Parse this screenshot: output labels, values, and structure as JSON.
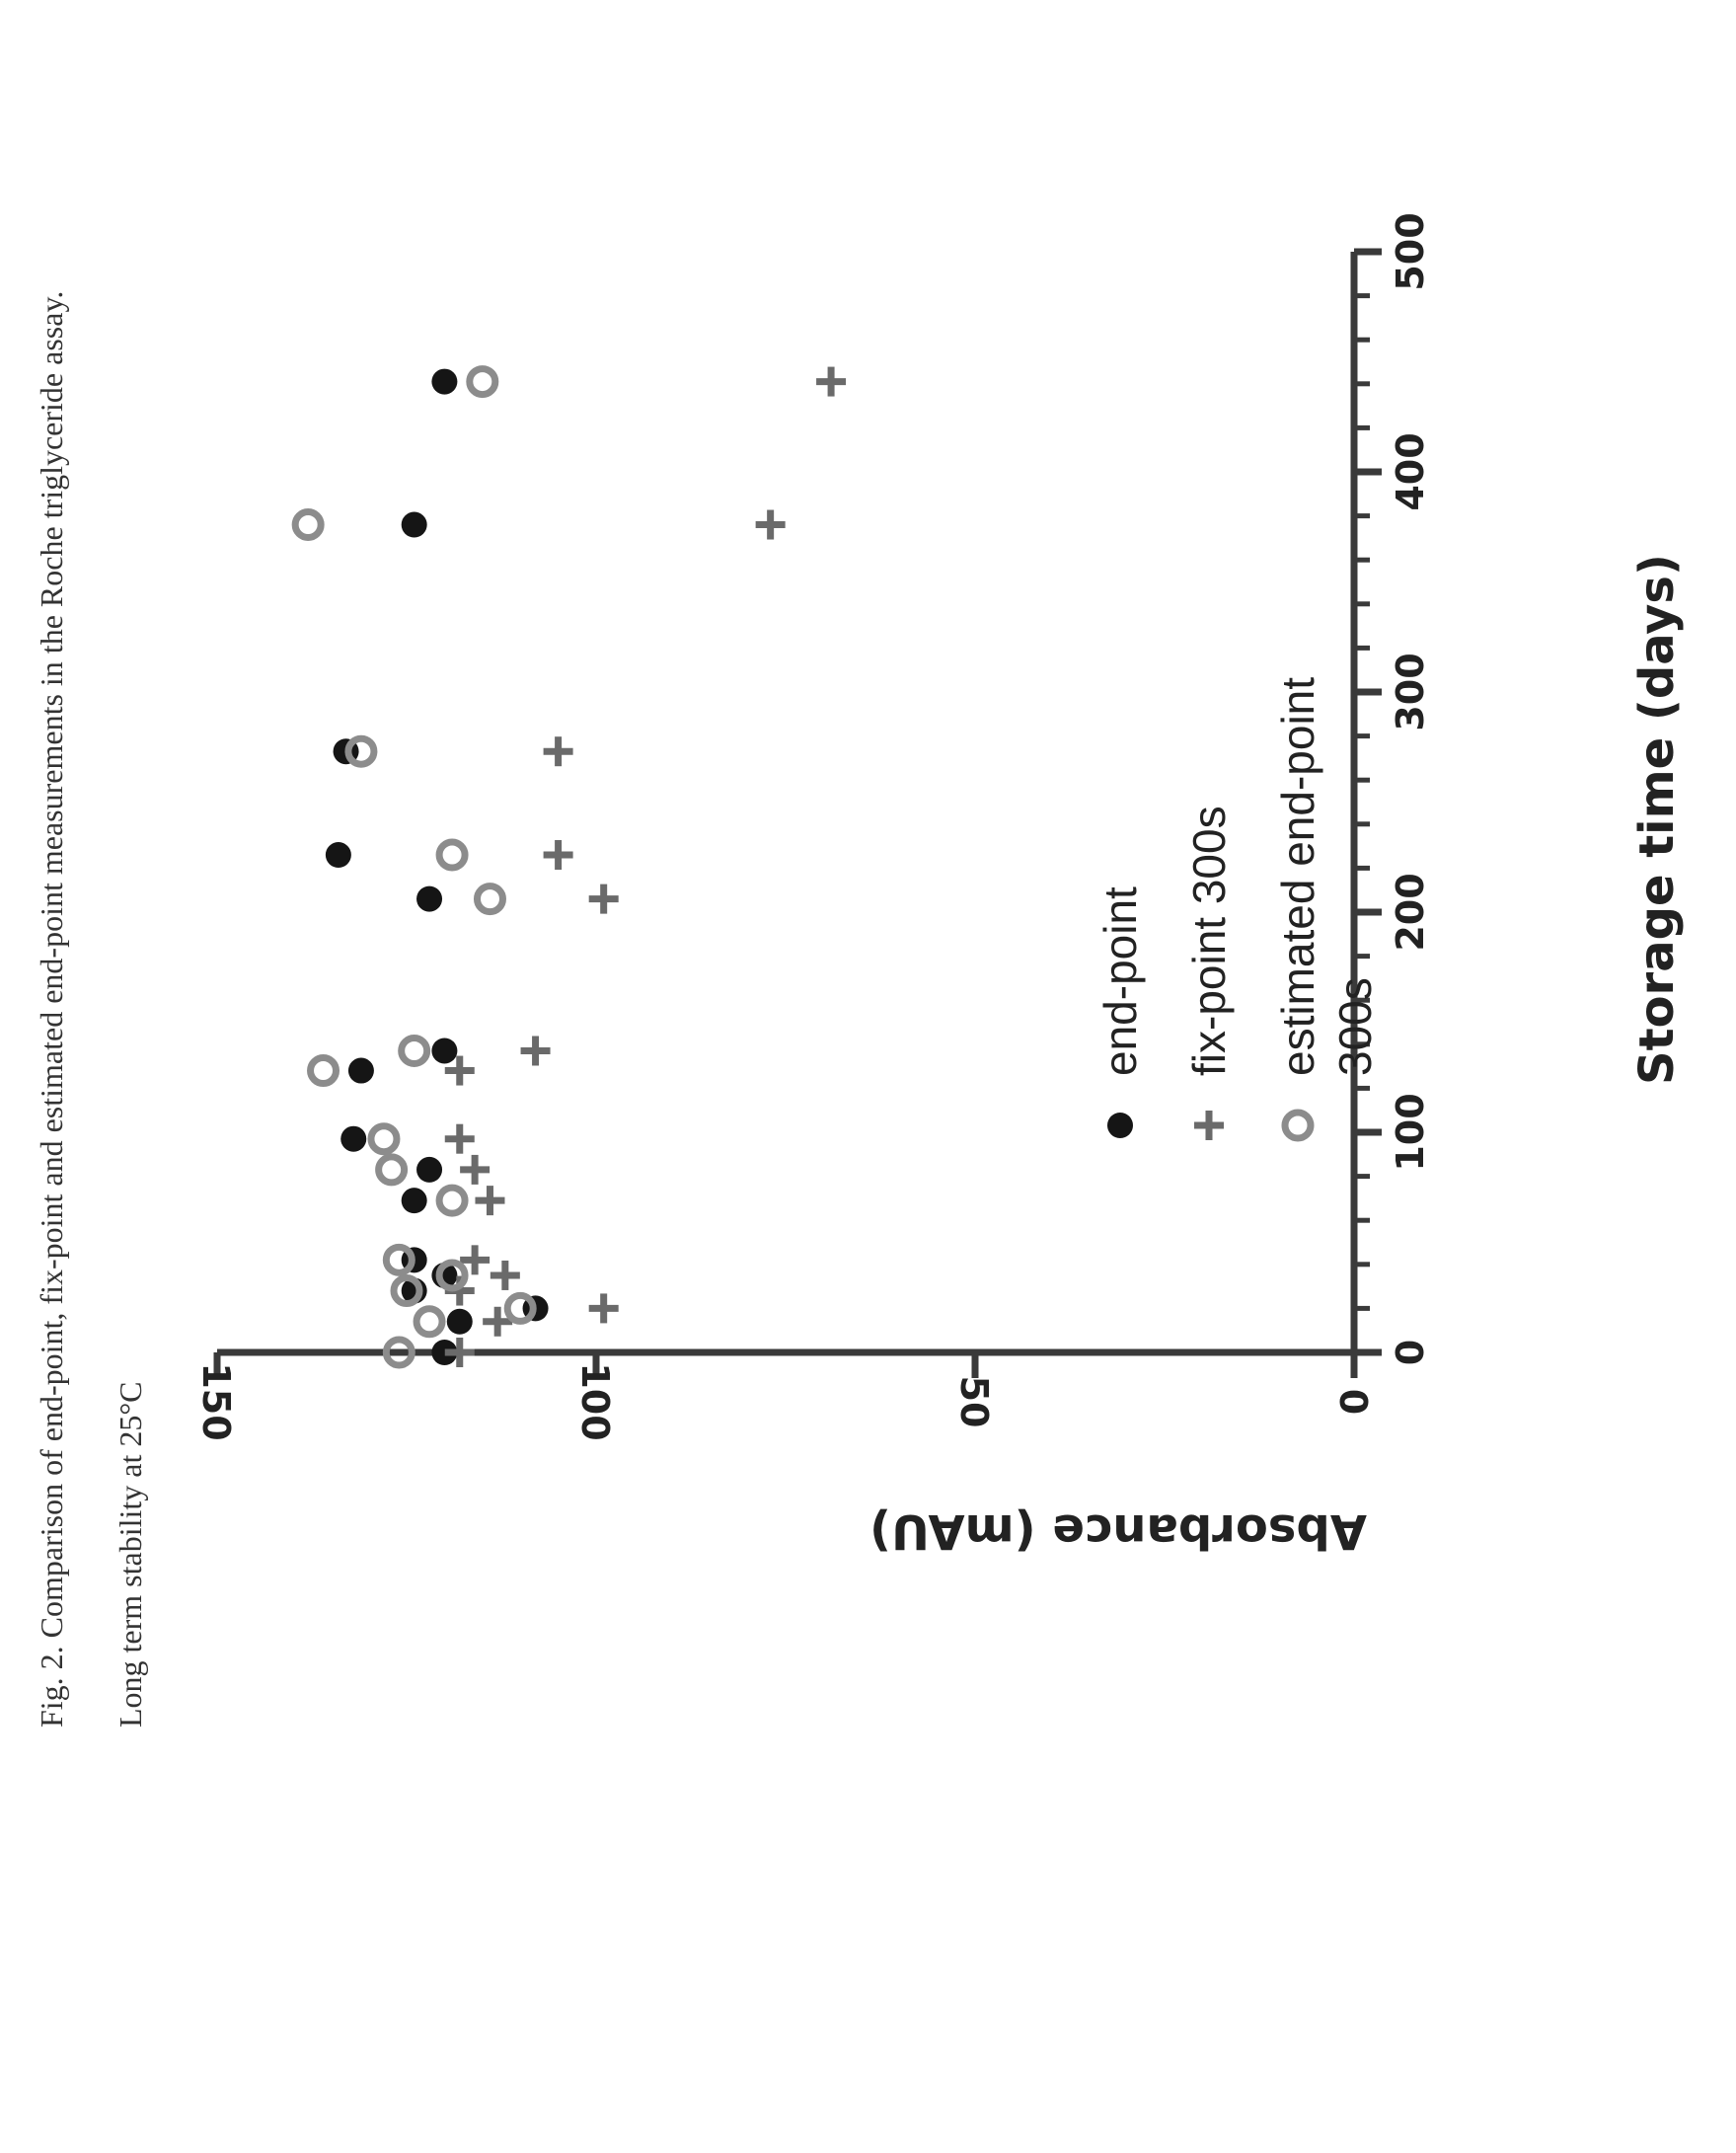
{
  "caption": {
    "title": "Fig. 2. Comparison of end-point, fix-point and estimated end-point measurements in the Roche triglyceride assay.",
    "subtitle": "Long term stability at 25°C"
  },
  "chart_data": {
    "type": "scatter",
    "xlabel": "Storage time (days)",
    "ylabel": "Absorbance (mAU)",
    "xlim": [
      0,
      500
    ],
    "ylim": [
      0,
      150
    ],
    "x_ticks": [
      "0",
      "100",
      "200",
      "300",
      "400",
      "500"
    ],
    "y_ticks": [
      "0",
      "50",
      "100",
      "150"
    ],
    "grid": false,
    "legend_position": "bottom-right",
    "series": [
      {
        "name": "end-point",
        "marker": "filled-circle",
        "color": "#151515",
        "points": [
          {
            "x": 0,
            "y": 120
          },
          {
            "x": 14,
            "y": 118
          },
          {
            "x": 20,
            "y": 108
          },
          {
            "x": 28,
            "y": 124
          },
          {
            "x": 35,
            "y": 120
          },
          {
            "x": 42,
            "y": 124
          },
          {
            "x": 69,
            "y": 124
          },
          {
            "x": 83,
            "y": 122
          },
          {
            "x": 97,
            "y": 132
          },
          {
            "x": 128,
            "y": 131
          },
          {
            "x": 137,
            "y": 120
          },
          {
            "x": 206,
            "y": 122
          },
          {
            "x": 226,
            "y": 134
          },
          {
            "x": 273,
            "y": 133
          },
          {
            "x": 376,
            "y": 124
          },
          {
            "x": 441,
            "y": 120
          }
        ]
      },
      {
        "name": "fix-point 300s",
        "marker": "plus",
        "color": "#6a6a6a",
        "points": [
          {
            "x": 0,
            "y": 118
          },
          {
            "x": 14,
            "y": 113
          },
          {
            "x": 20,
            "y": 99
          },
          {
            "x": 28,
            "y": 118
          },
          {
            "x": 35,
            "y": 112
          },
          {
            "x": 42,
            "y": 116
          },
          {
            "x": 69,
            "y": 114
          },
          {
            "x": 83,
            "y": 116
          },
          {
            "x": 97,
            "y": 118
          },
          {
            "x": 128,
            "y": 118
          },
          {
            "x": 137,
            "y": 108
          },
          {
            "x": 206,
            "y": 99
          },
          {
            "x": 226,
            "y": 105
          },
          {
            "x": 273,
            "y": 105
          },
          {
            "x": 376,
            "y": 77
          },
          {
            "x": 441,
            "y": 69
          }
        ]
      },
      {
        "name": "estimated end-point 300s",
        "marker": "open-circle",
        "color": "#8c8c8c",
        "points": [
          {
            "x": 0,
            "y": 126
          },
          {
            "x": 14,
            "y": 122
          },
          {
            "x": 20,
            "y": 110
          },
          {
            "x": 28,
            "y": 125
          },
          {
            "x": 35,
            "y": 119
          },
          {
            "x": 42,
            "y": 126
          },
          {
            "x": 69,
            "y": 119
          },
          {
            "x": 83,
            "y": 127
          },
          {
            "x": 97,
            "y": 128
          },
          {
            "x": 128,
            "y": 136
          },
          {
            "x": 137,
            "y": 124
          },
          {
            "x": 206,
            "y": 114
          },
          {
            "x": 226,
            "y": 119
          },
          {
            "x": 273,
            "y": 131
          },
          {
            "x": 376,
            "y": 138
          },
          {
            "x": 441,
            "y": 115
          }
        ]
      }
    ]
  }
}
